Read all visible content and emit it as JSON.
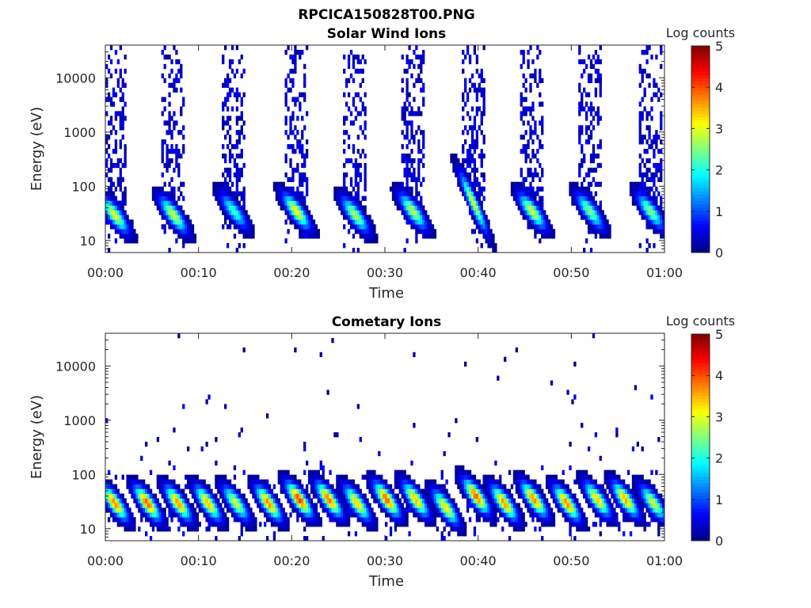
{
  "figure": {
    "title": "RPCICA150828T00.PNG"
  },
  "chart_data": [
    {
      "type": "heatmap",
      "title": "Solar Wind Ions",
      "xlabel": "Time",
      "ylabel": "Energy (eV)",
      "x_ticks": [
        "00:00",
        "00:10",
        "00:20",
        "00:30",
        "00:40",
        "00:50",
        "01:00"
      ],
      "xlim": [
        "00:00",
        "01:00"
      ],
      "y_scale": "log",
      "y_ticks": [
        10,
        100,
        1000,
        10000
      ],
      "ylim": [
        6,
        40000
      ],
      "colorbar": {
        "label": "Log counts",
        "ticks": [
          0,
          1,
          2,
          3,
          4,
          5
        ],
        "range": [
          0,
          5
        ],
        "colormap": "jet"
      },
      "bursts": [
        {
          "center_min": 1.0,
          "peak_eV": 30,
          "max_log": 3.1
        },
        {
          "center_min": 7.3,
          "peak_eV": 30,
          "max_log": 3.0
        },
        {
          "center_min": 13.8,
          "peak_eV": 35,
          "max_log": 2.2
        },
        {
          "center_min": 20.5,
          "peak_eV": 35,
          "max_log": 3.2
        },
        {
          "center_min": 26.8,
          "peak_eV": 30,
          "max_log": 2.8
        },
        {
          "center_min": 33.0,
          "peak_eV": 35,
          "max_log": 2.9
        },
        {
          "center_min": 39.5,
          "peak_eV": 50,
          "max_log": 3.0
        },
        {
          "center_min": 45.8,
          "peak_eV": 35,
          "max_log": 3.0
        },
        {
          "center_min": 52.0,
          "peak_eV": 35,
          "max_log": 2.6
        },
        {
          "center_min": 58.5,
          "peak_eV": 35,
          "max_log": 2.6
        }
      ]
    },
    {
      "type": "heatmap",
      "title": "Cometary Ions",
      "xlabel": "Time",
      "ylabel": "Energy (eV)",
      "x_ticks": [
        "00:00",
        "00:10",
        "00:20",
        "00:30",
        "00:40",
        "00:50",
        "01:00"
      ],
      "xlim": [
        "00:00",
        "01:00"
      ],
      "y_scale": "log",
      "y_ticks": [
        10,
        100,
        1000,
        10000
      ],
      "ylim": [
        6,
        40000
      ],
      "colorbar": {
        "label": "Log counts",
        "ticks": [
          0,
          1,
          2,
          3,
          4,
          5
        ],
        "range": [
          0,
          5
        ],
        "colormap": "jet"
      },
      "bursts": [
        {
          "center_min": 1.0,
          "peak_eV": 30,
          "max_log": 3.8
        },
        {
          "center_min": 4.5,
          "peak_eV": 30,
          "max_log": 4.0
        },
        {
          "center_min": 7.8,
          "peak_eV": 30,
          "max_log": 3.7
        },
        {
          "center_min": 11.0,
          "peak_eV": 30,
          "max_log": 3.5
        },
        {
          "center_min": 14.0,
          "peak_eV": 30,
          "max_log": 3.0
        },
        {
          "center_min": 17.5,
          "peak_eV": 30,
          "max_log": 3.8
        },
        {
          "center_min": 20.8,
          "peak_eV": 35,
          "max_log": 4.2
        },
        {
          "center_min": 24.0,
          "peak_eV": 35,
          "max_log": 3.9
        },
        {
          "center_min": 27.0,
          "peak_eV": 30,
          "max_log": 3.4
        },
        {
          "center_min": 30.2,
          "peak_eV": 35,
          "max_log": 4.0
        },
        {
          "center_min": 33.3,
          "peak_eV": 35,
          "max_log": 3.5
        },
        {
          "center_min": 36.5,
          "peak_eV": 25,
          "max_log": 3.3
        },
        {
          "center_min": 39.8,
          "peak_eV": 40,
          "max_log": 4.0
        },
        {
          "center_min": 42.8,
          "peak_eV": 30,
          "max_log": 3.7
        },
        {
          "center_min": 46.0,
          "peak_eV": 35,
          "max_log": 3.8
        },
        {
          "center_min": 49.5,
          "peak_eV": 30,
          "max_log": 3.8
        },
        {
          "center_min": 52.8,
          "peak_eV": 35,
          "max_log": 3.4
        },
        {
          "center_min": 55.8,
          "peak_eV": 35,
          "max_log": 3.6
        },
        {
          "center_min": 58.8,
          "peak_eV": 30,
          "max_log": 3.0
        }
      ]
    }
  ]
}
